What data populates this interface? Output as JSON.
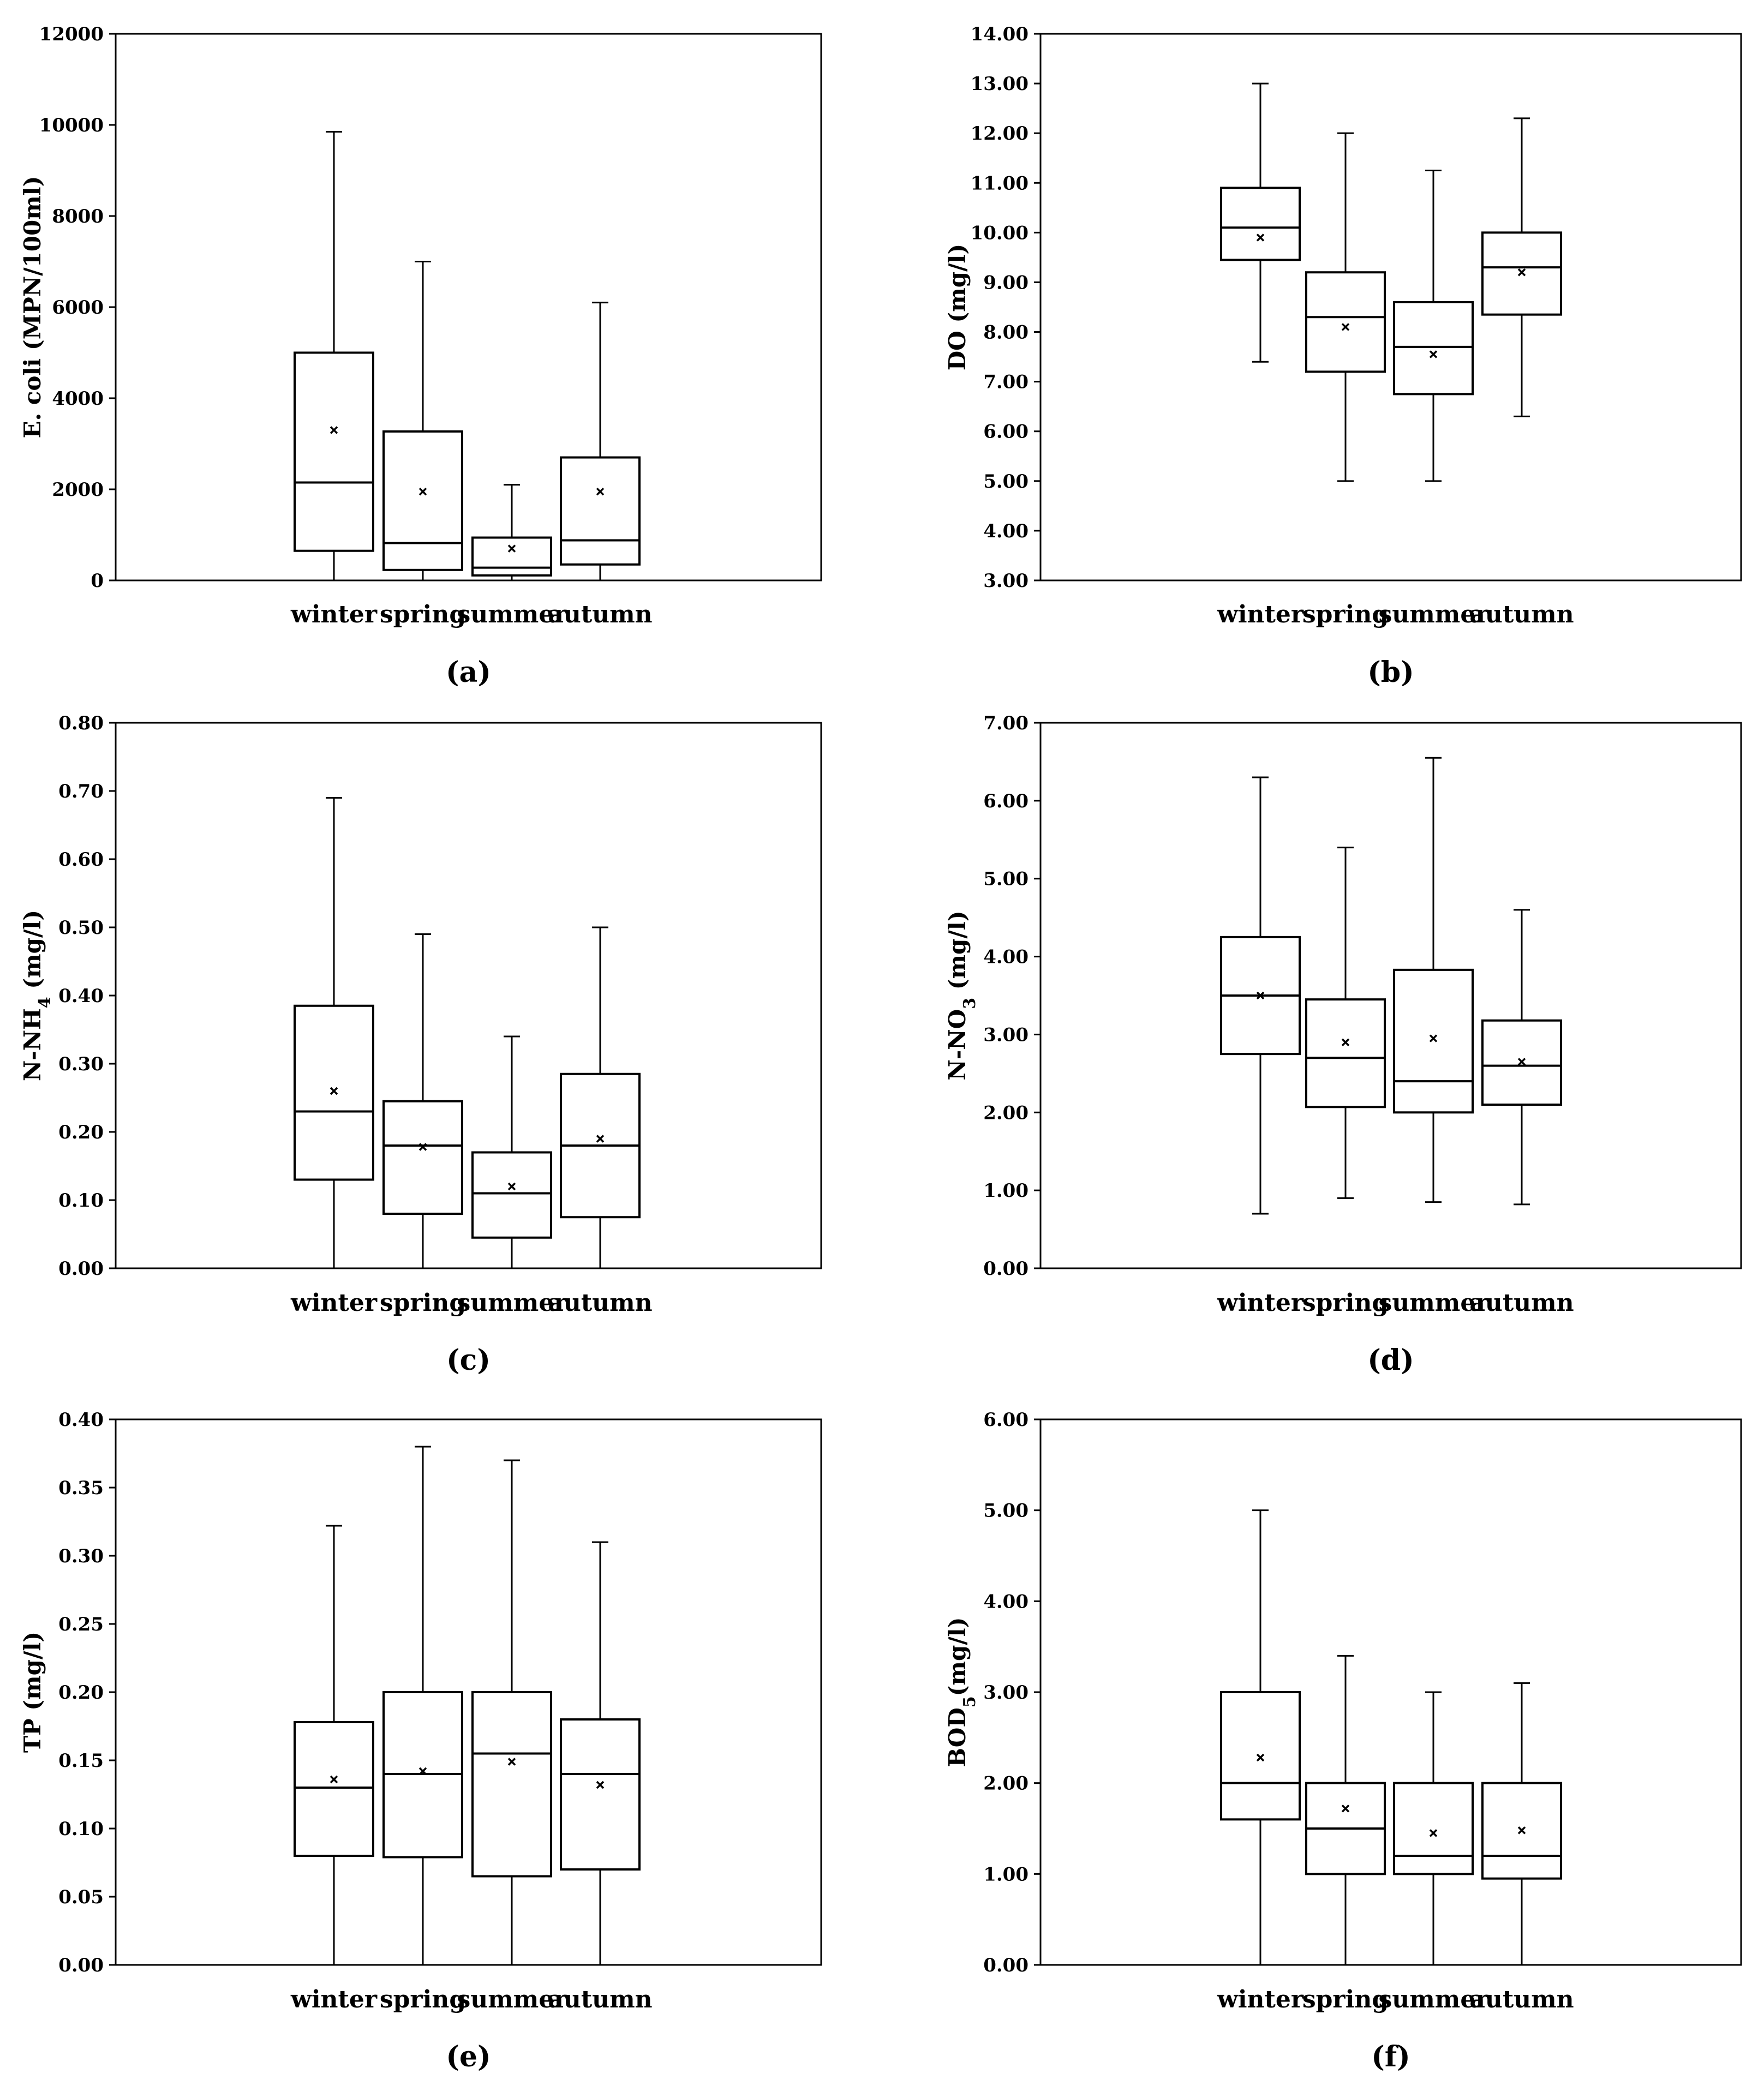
{
  "figure": {
    "background": "#ffffff",
    "stroke_color": "#000000"
  },
  "chart_data": [
    {
      "type": "boxplot",
      "panel": "(a)",
      "ylabel": "E. coli (MPN/100ml)",
      "ylim": [
        0,
        12000
      ],
      "ticks": [
        "0",
        "2000",
        "4000",
        "6000",
        "8000",
        "10000",
        "12000"
      ],
      "categories": [
        "winter",
        "spring",
        "summer",
        "autumn"
      ],
      "boxes": [
        {
          "min": 0,
          "q1": 650,
          "median": 2150,
          "q3": 5000,
          "max": 9850,
          "mean": 3300
        },
        {
          "min": 0,
          "q1": 230,
          "median": 820,
          "q3": 3270,
          "max": 7000,
          "mean": 1950
        },
        {
          "min": 0,
          "q1": 110,
          "median": 280,
          "q3": 940,
          "max": 2100,
          "mean": 700
        },
        {
          "min": 0,
          "q1": 350,
          "median": 880,
          "q3": 2700,
          "max": 6100,
          "mean": 1950
        }
      ]
    },
    {
      "type": "boxplot",
      "panel": "(b)",
      "ylabel": "DO (mg/l)",
      "ylim": [
        3,
        14
      ],
      "ticks": [
        "3.00",
        "4.00",
        "5.00",
        "6.00",
        "7.00",
        "8.00",
        "9.00",
        "10.00",
        "11.00",
        "12.00",
        "13.00",
        "14.00"
      ],
      "categories": [
        "winter",
        "spring",
        "summer",
        "autumn"
      ],
      "boxes": [
        {
          "min": 7.4,
          "q1": 9.45,
          "median": 10.1,
          "q3": 10.9,
          "max": 13.0,
          "mean": 9.9
        },
        {
          "min": 5.0,
          "q1": 7.2,
          "median": 8.3,
          "q3": 9.2,
          "max": 12.0,
          "mean": 8.1
        },
        {
          "min": 5.0,
          "q1": 6.75,
          "median": 7.7,
          "q3": 8.6,
          "max": 11.25,
          "mean": 7.55
        },
        {
          "min": 6.3,
          "q1": 8.35,
          "median": 9.3,
          "q3": 10.0,
          "max": 12.3,
          "mean": 9.2
        }
      ]
    },
    {
      "type": "boxplot",
      "panel": "(c)",
      "ylabel": "N-NH4 (mg/l)",
      "ylim": [
        0,
        0.8
      ],
      "ticks": [
        "0.00",
        "0.10",
        "0.20",
        "0.30",
        "0.40",
        "0.50",
        "0.60",
        "0.70",
        "0.80"
      ],
      "categories": [
        "winter",
        "spring",
        "summer",
        "autumn"
      ],
      "boxes": [
        {
          "min": 0,
          "q1": 0.13,
          "median": 0.23,
          "q3": 0.385,
          "max": 0.69,
          "mean": 0.26
        },
        {
          "min": 0,
          "q1": 0.08,
          "median": 0.18,
          "q3": 0.245,
          "max": 0.49,
          "mean": 0.178
        },
        {
          "min": 0,
          "q1": 0.045,
          "median": 0.11,
          "q3": 0.17,
          "max": 0.34,
          "mean": 0.12
        },
        {
          "min": 0,
          "q1": 0.075,
          "median": 0.18,
          "q3": 0.285,
          "max": 0.5,
          "mean": 0.19
        }
      ]
    },
    {
      "type": "boxplot",
      "panel": "(d)",
      "ylabel": "N-NO3 (mg/l)",
      "ylim": [
        0,
        7
      ],
      "ticks": [
        "0.00",
        "1.00",
        "2.00",
        "3.00",
        "4.00",
        "5.00",
        "6.00",
        "7.00"
      ],
      "categories": [
        "winter",
        "spring",
        "summer",
        "autumn"
      ],
      "boxes": [
        {
          "min": 0.7,
          "q1": 2.75,
          "median": 3.5,
          "q3": 4.25,
          "max": 6.3,
          "mean": 3.5
        },
        {
          "min": 0.9,
          "q1": 2.07,
          "median": 2.7,
          "q3": 3.45,
          "max": 5.4,
          "mean": 2.9
        },
        {
          "min": 0.85,
          "q1": 2.0,
          "median": 2.4,
          "q3": 3.83,
          "max": 6.55,
          "mean": 2.95
        },
        {
          "min": 0.82,
          "q1": 2.1,
          "median": 2.6,
          "q3": 3.18,
          "max": 4.6,
          "mean": 2.65
        }
      ]
    },
    {
      "type": "boxplot",
      "panel": "(e)",
      "ylabel": "TP (mg/l)",
      "ylim": [
        0,
        0.4
      ],
      "ticks": [
        "0.00",
        "0.05",
        "0.10",
        "0.15",
        "0.20",
        "0.25",
        "0.30",
        "0.35",
        "0.40"
      ],
      "categories": [
        "winter",
        "spring",
        "summer",
        "autumn"
      ],
      "boxes": [
        {
          "min": 0,
          "q1": 0.08,
          "median": 0.13,
          "q3": 0.178,
          "max": 0.322,
          "mean": 0.136
        },
        {
          "min": 0,
          "q1": 0.079,
          "median": 0.14,
          "q3": 0.2,
          "max": 0.38,
          "mean": 0.142
        },
        {
          "min": 0,
          "q1": 0.065,
          "median": 0.155,
          "q3": 0.2,
          "max": 0.37,
          "mean": 0.149
        },
        {
          "min": 0,
          "q1": 0.07,
          "median": 0.14,
          "q3": 0.18,
          "max": 0.31,
          "mean": 0.132
        }
      ]
    },
    {
      "type": "boxplot",
      "panel": "(f)",
      "ylabel": "BOD5(mg/l)",
      "ylim": [
        0,
        6
      ],
      "ticks": [
        "0.00",
        "1.00",
        "2.00",
        "3.00",
        "4.00",
        "5.00",
        "6.00"
      ],
      "categories": [
        "winter",
        "spring",
        "summer",
        "autumn"
      ],
      "boxes": [
        {
          "min": 0,
          "q1": 1.6,
          "median": 2.0,
          "q3": 3.0,
          "max": 5.0,
          "mean": 2.28
        },
        {
          "min": 0,
          "q1": 1.0,
          "median": 1.5,
          "q3": 2.0,
          "max": 3.4,
          "mean": 1.72
        },
        {
          "min": 0,
          "q1": 1.0,
          "median": 1.2,
          "q3": 2.0,
          "max": 3.0,
          "mean": 1.45
        },
        {
          "min": 0,
          "q1": 0.95,
          "median": 1.2,
          "q3": 2.0,
          "max": 3.1,
          "mean": 1.48
        }
      ]
    }
  ]
}
